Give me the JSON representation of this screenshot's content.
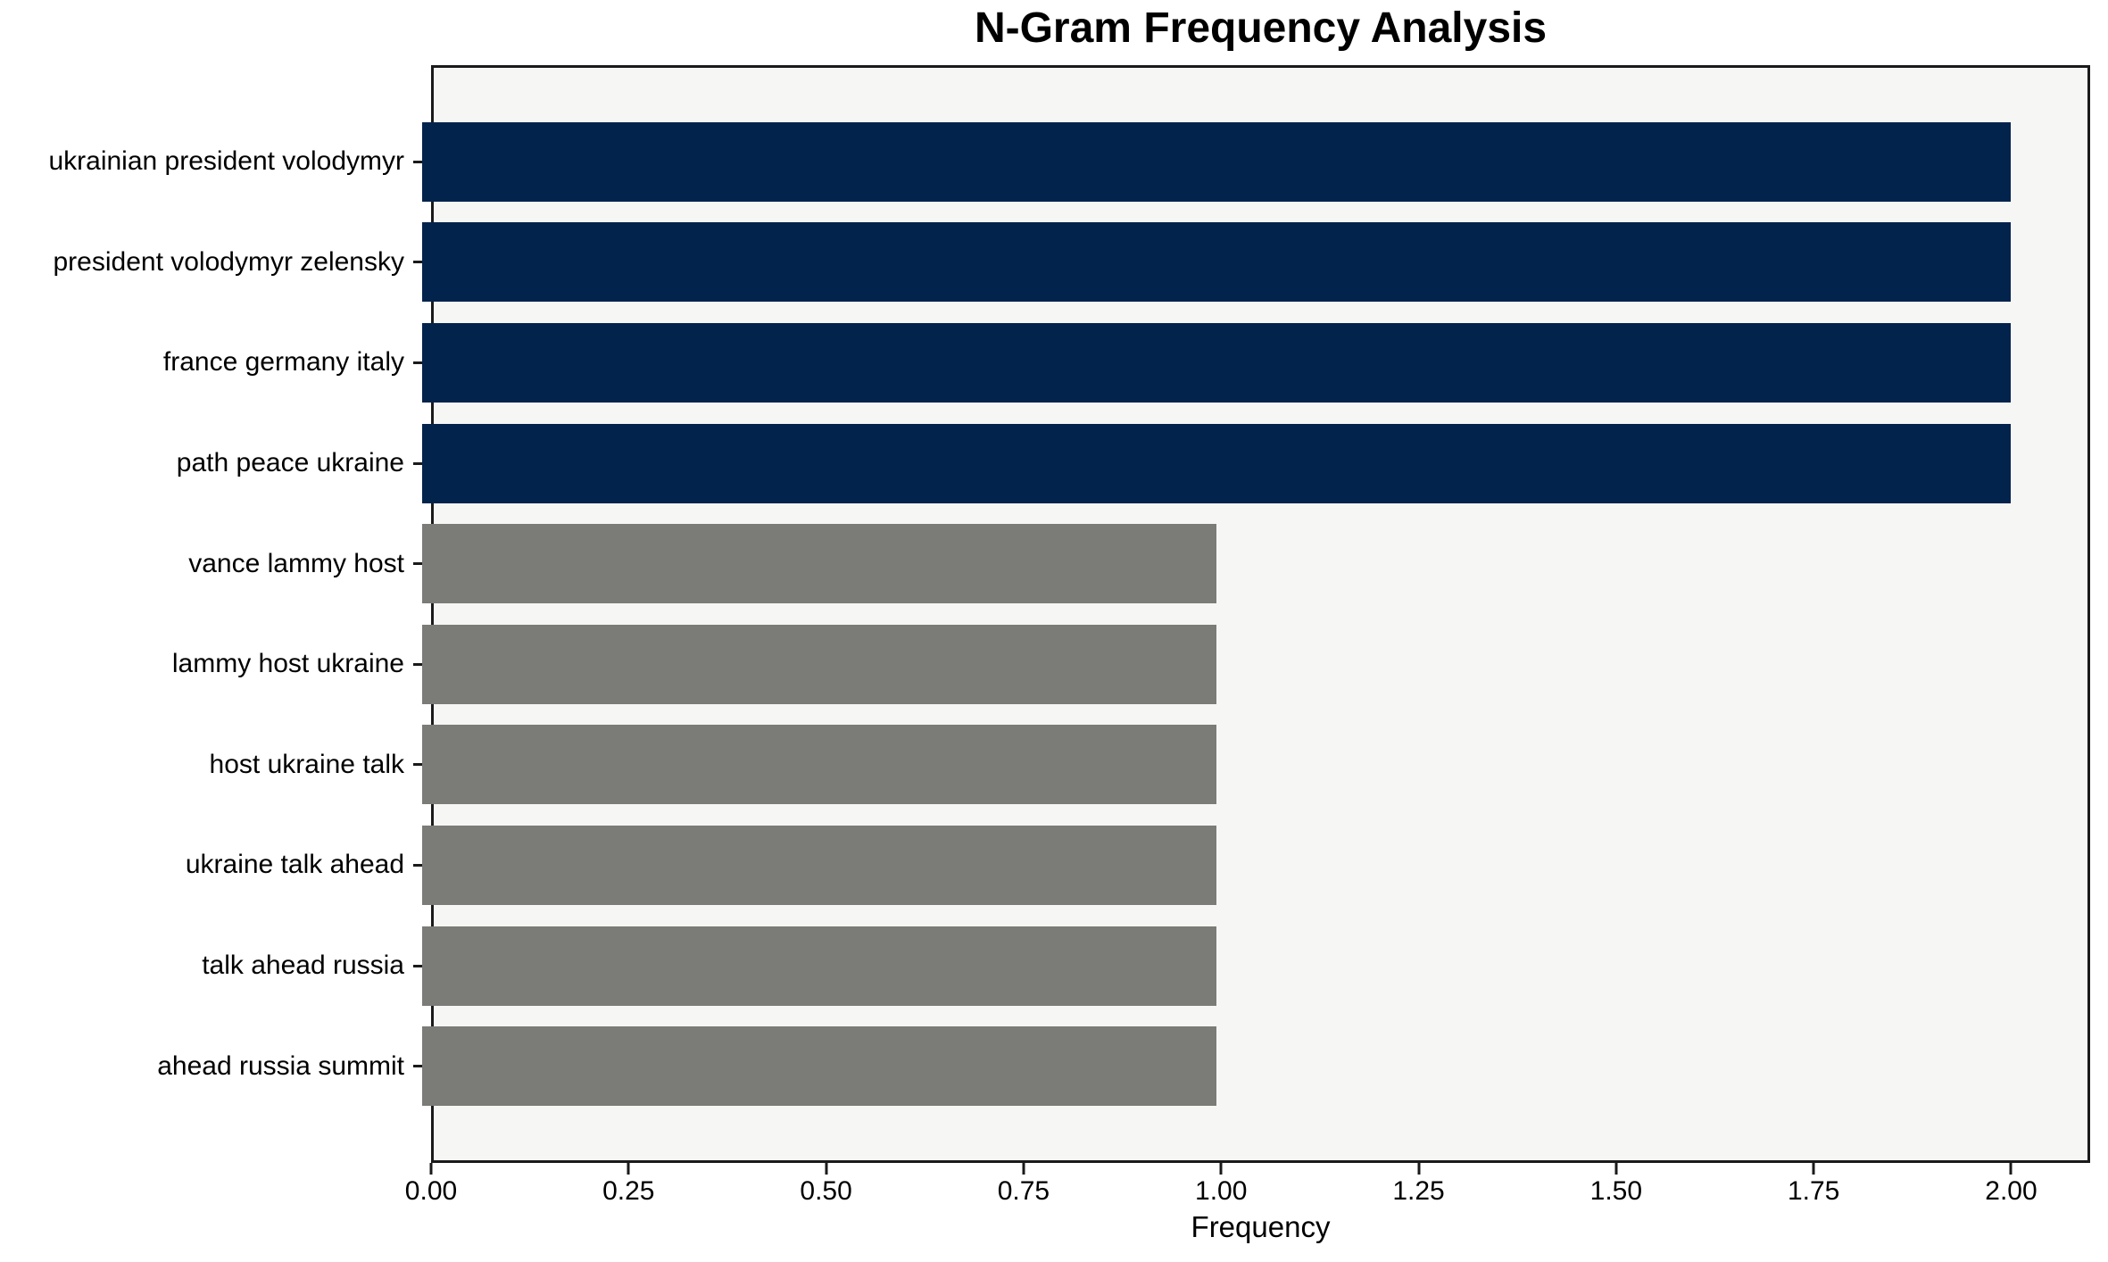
{
  "chart_data": {
    "type": "bar",
    "orientation": "horizontal",
    "title": "N-Gram Frequency Analysis",
    "xlabel": "Frequency",
    "ylabel": "",
    "categories": [
      "ukrainian president volodymyr",
      "president volodymyr zelensky",
      "france germany italy",
      "path peace ukraine",
      "vance lammy host",
      "lammy host ukraine",
      "host ukraine talk",
      "ukraine talk ahead",
      "talk ahead russia",
      "ahead russia summit"
    ],
    "values": [
      2,
      2,
      2,
      2,
      1,
      1,
      1,
      1,
      1,
      1
    ],
    "bar_colors": [
      "#02234c",
      "#02234c",
      "#02234c",
      "#02234c",
      "#7b7b77",
      "#7b7b77",
      "#7b7b77",
      "#7b7b77",
      "#7b7b77",
      "#7b7b77"
    ],
    "xlim": [
      0,
      2.1
    ],
    "xtick_values": [
      0,
      0.25,
      0.5,
      0.75,
      1.0,
      1.25,
      1.5,
      1.75,
      2.0
    ],
    "xticks": [
      "0.00",
      "0.25",
      "0.50",
      "0.75",
      "1.00",
      "1.25",
      "1.50",
      "1.75",
      "2.00"
    ],
    "grid": false,
    "legend_position": "none",
    "colors": {
      "high_frequency_bar": "#02234c",
      "low_frequency_bar": "#7b7b77",
      "plot_background": "#f6f6f5",
      "figure_background": "#ffffff",
      "axis_spine": "#1a1a1a",
      "text": "#000000"
    }
  }
}
